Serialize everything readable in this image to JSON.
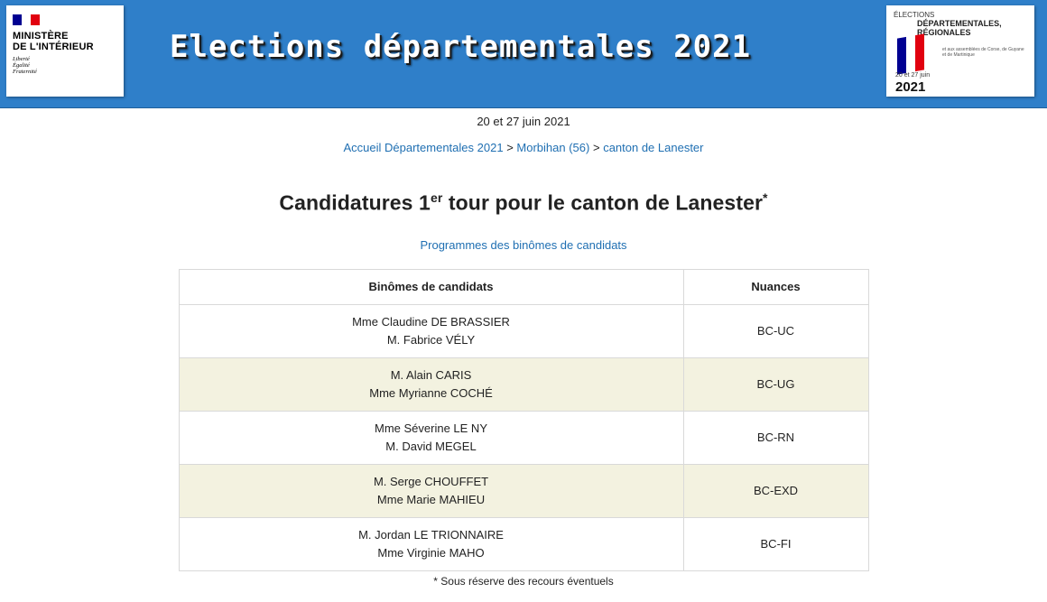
{
  "header": {
    "ministry_name": "MINISTÈRE\nDE L'INTÉRIEUR",
    "motto": [
      "Liberté",
      "Égalité",
      "Fraternité"
    ],
    "banner_title": "Elections départementales 2021",
    "election_logo": {
      "line1": "ÉLECTIONS",
      "line2": "DÉPARTEMENTALES,",
      "line3": "RÉGIONALES",
      "small_text": "et aux assemblées de Corse, de Guyane et de Martinique",
      "date": "20 et 27 juin",
      "year": "2021"
    }
  },
  "date_line": "20 et 27 juin 2021",
  "breadcrumb": {
    "items": [
      "Accueil Départementales 2021",
      "Morbihan (56)",
      "canton de Lanester"
    ],
    "separator": ">"
  },
  "title": {
    "prefix": "Candidatures 1",
    "sup": "er",
    "suffix": " tour pour le canton de Lanester",
    "star": "*"
  },
  "programmes_link": "Programmes des binômes de candidats",
  "table": {
    "headers": [
      "Binômes de candidats",
      "Nuances"
    ],
    "rows": [
      {
        "c1": "Mme Claudine DE BRASSIER",
        "c2": "M. Fabrice VÉLY",
        "nuance": "BC-UC"
      },
      {
        "c1": "M. Alain CARIS",
        "c2": "Mme Myrianne COCHÉ",
        "nuance": "BC-UG"
      },
      {
        "c1": "Mme Séverine LE NY",
        "c2": "M. David MEGEL",
        "nuance": "BC-RN"
      },
      {
        "c1": "M. Serge CHOUFFET",
        "c2": "Mme Marie MAHIEU",
        "nuance": "BC-EXD"
      },
      {
        "c1": "M. Jordan LE TRIONNAIRE",
        "c2": "Mme Virginie MAHO",
        "nuance": "BC-FI"
      }
    ]
  },
  "footnote": "* Sous réserve des recours éventuels",
  "colors": {
    "banner": "#2f7fc9",
    "link": "#1f6fb2",
    "alt_row": "#f3f2e0",
    "flag_blue": "#000091",
    "flag_red": "#e1000f"
  }
}
